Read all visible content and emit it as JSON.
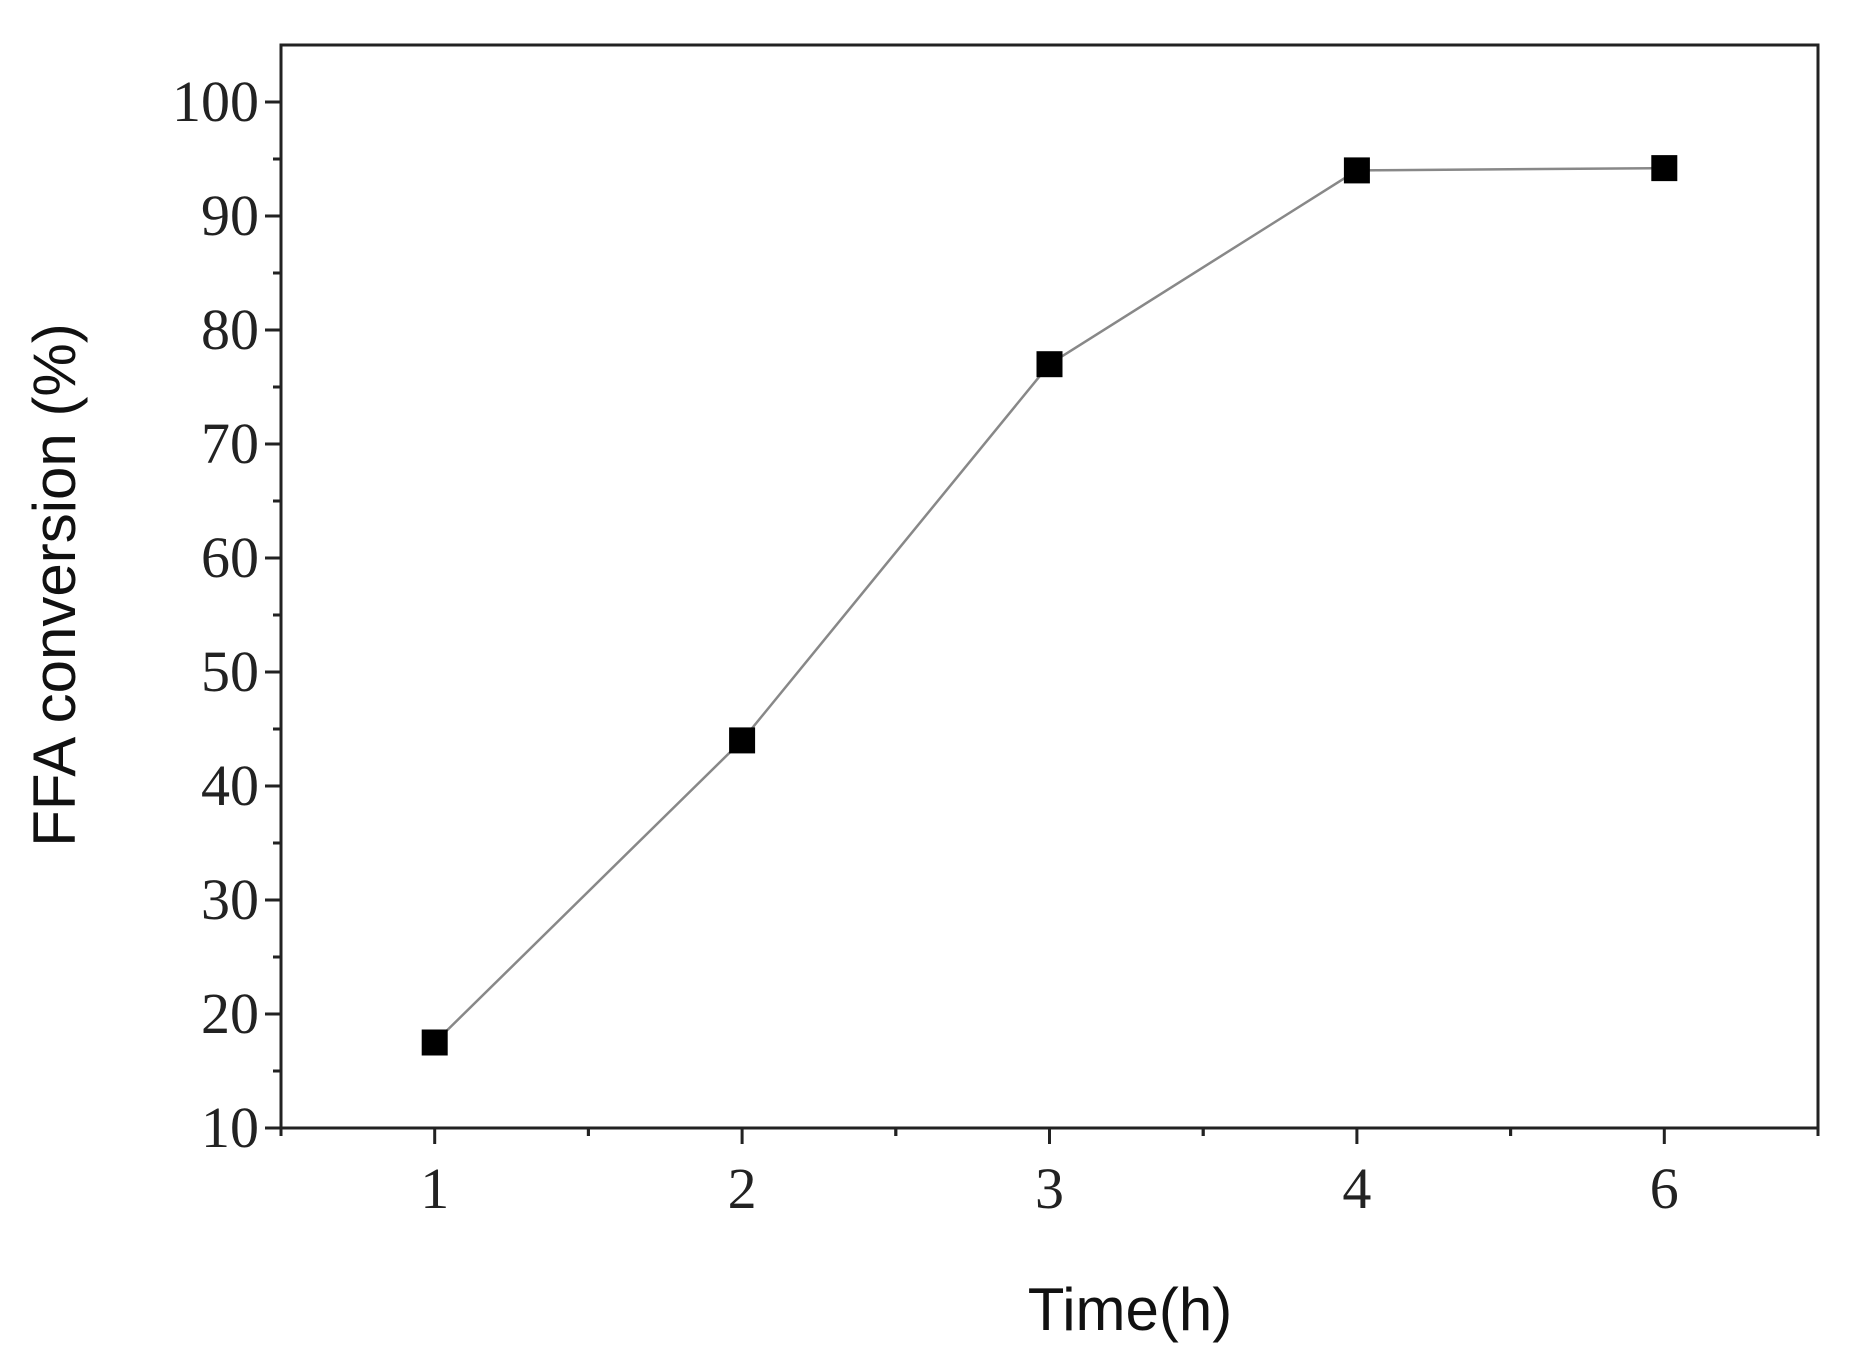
{
  "chart_data": {
    "type": "line",
    "x_label": "Time(h)",
    "y_label": "FFA conversion (%)",
    "categories": [
      "1",
      "2",
      "3",
      "4",
      "6"
    ],
    "series": [
      {
        "color": "#888888",
        "marker_color": "#000000",
        "values": [
          17.5,
          44,
          77,
          94,
          94.2
        ]
      }
    ],
    "ylim": [
      10,
      105
    ],
    "yticks": [
      10,
      20,
      30,
      40,
      50,
      60,
      70,
      80,
      90,
      100
    ],
    "grid": false
  }
}
